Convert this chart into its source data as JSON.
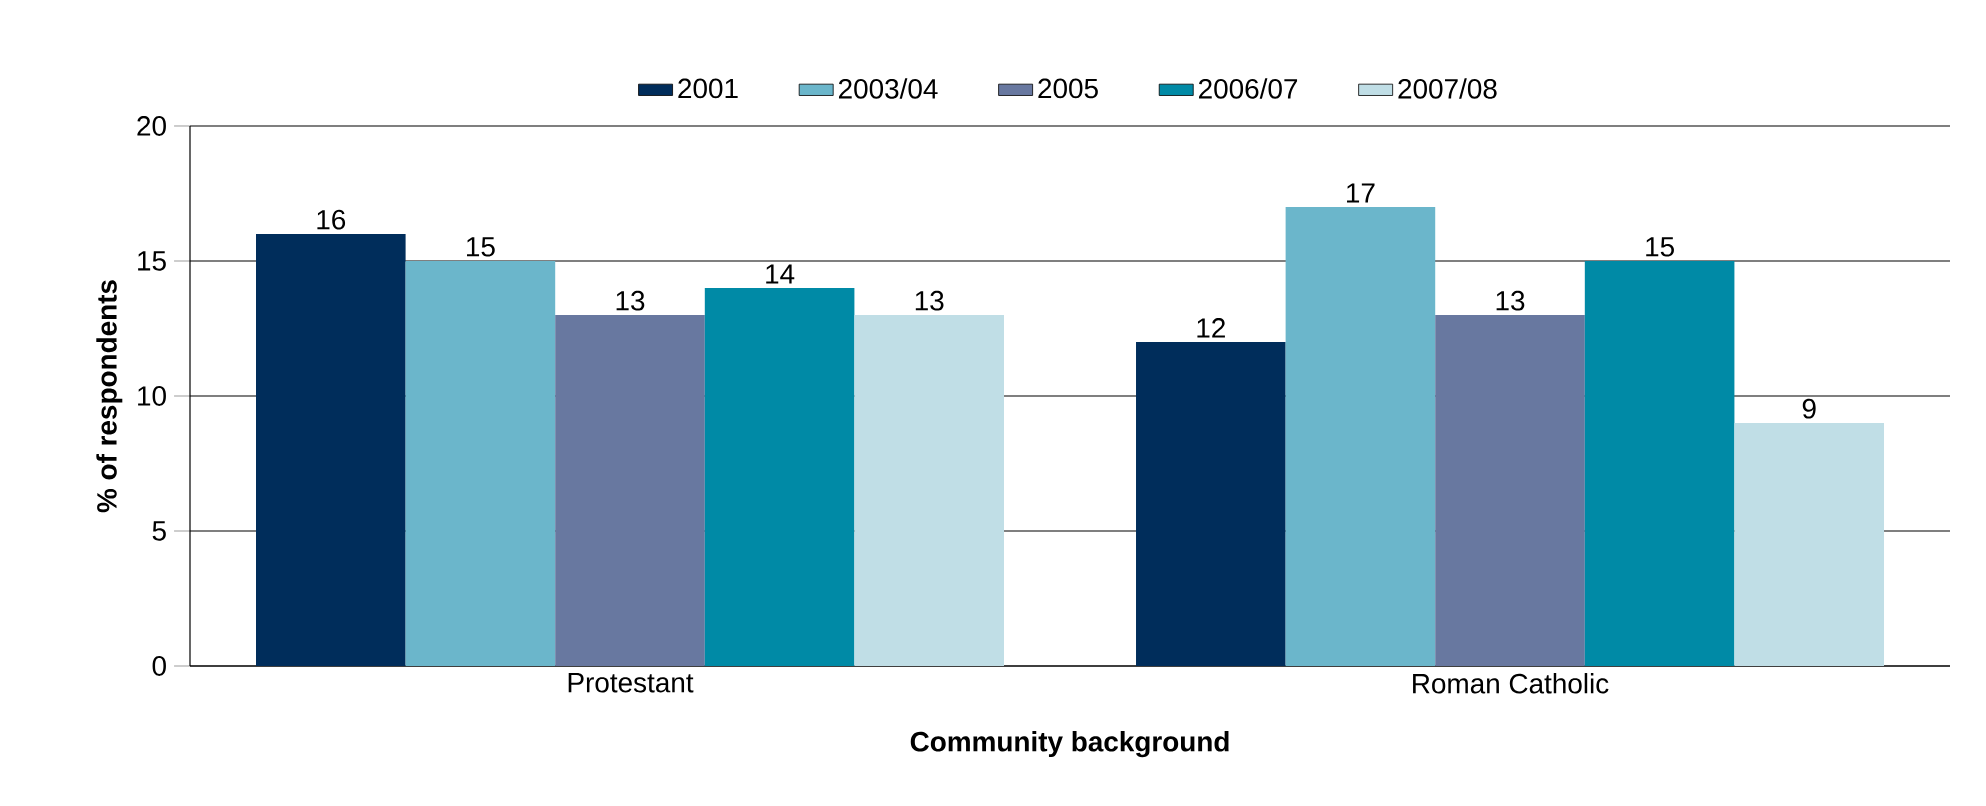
{
  "chart_data": {
    "type": "bar",
    "xlabel": "Community background",
    "ylabel": "% of respondents",
    "categories": [
      "Protestant",
      "Roman Catholic"
    ],
    "series": [
      {
        "name": "2001",
        "color": "#002d5b",
        "values": [
          16,
          12
        ]
      },
      {
        "name": "2003/04",
        "color": "#6bb6cb",
        "values": [
          15,
          17
        ]
      },
      {
        "name": "2005",
        "color": "#6878a0",
        "values": [
          13,
          13
        ]
      },
      {
        "name": "2006/07",
        "color": "#008aa6",
        "values": [
          14,
          15
        ]
      },
      {
        "name": "2007/08",
        "color": "#c0dee6",
        "values": [
          13,
          9
        ]
      }
    ],
    "ylim": [
      0,
      20
    ],
    "yticks": [
      0,
      5,
      10,
      15,
      20
    ],
    "grid": "y",
    "legend": "top",
    "data_labels": true
  }
}
